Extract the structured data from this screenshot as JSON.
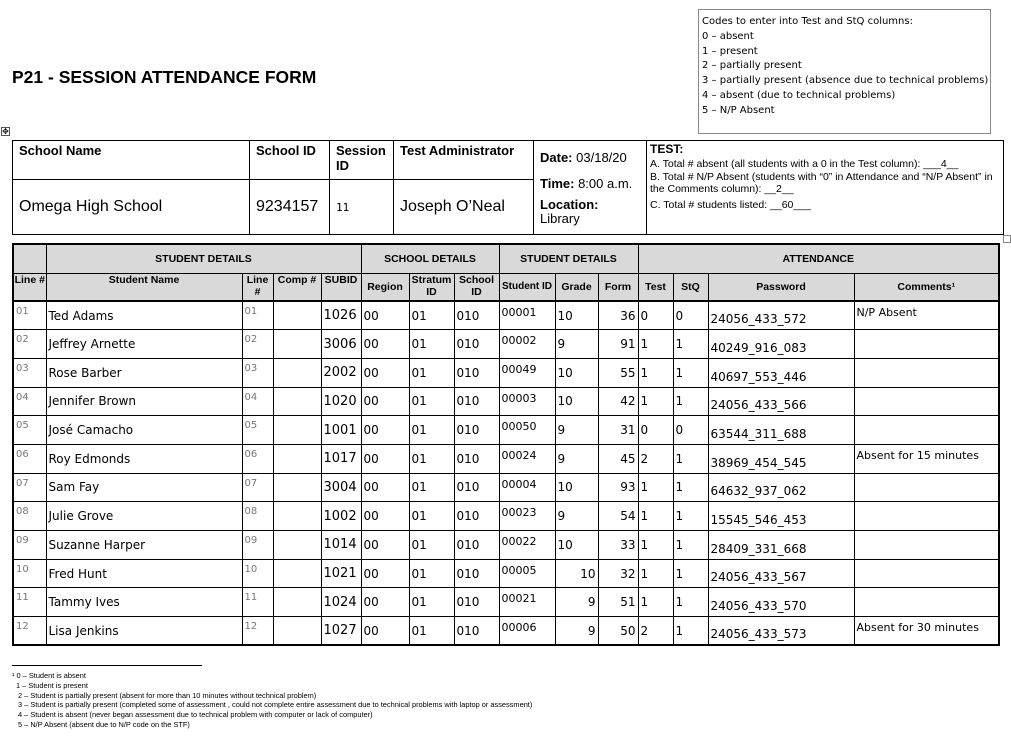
{
  "title": "P21 - SESSION ATTENDANCE FORM",
  "codes_box": {
    "heading": "Codes to enter into Test and StQ columns:",
    "items": [
      "0 – absent",
      "1 – present",
      "2 – partially present",
      "3 – partially present (absence due to technical problems)",
      "4 – absent (due to technical problems)",
      "5 – N/P Absent"
    ]
  },
  "session": {
    "school_name_label": "School Name",
    "school_name": "Omega High School",
    "school_id_label": "School ID",
    "school_id": "9234157",
    "session_id_label": "Session ID",
    "session_id": "11",
    "admin_label": "Test Administrator",
    "admin": "Joseph O’Neal",
    "date_label": "Date:",
    "date": "03/18/20",
    "time_label": "Time:",
    "time": "8:00 a.m.",
    "location_label": "Location:",
    "location": "Library",
    "test_label": "TEST:",
    "total_absent": "A. Total # absent (all students with a 0 in the Test column): ___4__",
    "total_np": "B. Total # N/P Absent (students with “0” in Attendance and “N/P Absent” in the Comments column): __2__",
    "total_listed": "C. Total # students listed: __60___"
  },
  "table": {
    "groups": [
      "STUDENT DETAILS",
      "SCHOOL DETAILS",
      "STUDENT DETAILS",
      "ATTENDANCE"
    ],
    "columns": [
      "Line #",
      "Student Name",
      "Line #",
      "Comp #",
      "SUBID",
      "Region",
      "Stratum ID",
      "School ID",
      "Student ID",
      "Grade",
      "Form",
      "Test",
      "StQ",
      "Password",
      "Comments¹"
    ],
    "rows": [
      [
        "01",
        "Ted Adams",
        "01",
        "",
        "1026",
        "00",
        "01",
        "010",
        "00001",
        "10",
        "36",
        "0",
        "0",
        "24056_433_572",
        "N/P Absent"
      ],
      [
        "02",
        "Jeffrey Arnette",
        "02",
        "",
        "3006",
        "00",
        "01",
        "010",
        "00002",
        "9",
        "91",
        "1",
        "1",
        "40249_916_083",
        ""
      ],
      [
        "03",
        "Rose Barber",
        "03",
        "",
        "2002",
        "00",
        "01",
        "010",
        "00049",
        "10",
        "55",
        "1",
        "1",
        "40697_553_446",
        ""
      ],
      [
        "04",
        "Jennifer Brown",
        "04",
        "",
        "1020",
        "00",
        "01",
        "010",
        "00003",
        "10",
        "42",
        "1",
        "1",
        "24056_433_566",
        ""
      ],
      [
        "05",
        "José Camacho",
        "05",
        "",
        "1001",
        "00",
        "01",
        "010",
        "00050",
        "9",
        "31",
        "0",
        "0",
        "63544_311_688",
        ""
      ],
      [
        "06",
        "Roy Edmonds",
        "06",
        "",
        "1017",
        "00",
        "01",
        "010",
        "00024",
        "9",
        "45",
        "2",
        "1",
        "38969_454_545",
        "Absent for 15 minutes"
      ],
      [
        "07",
        "Sam Fay",
        "07",
        "",
        "3004",
        "00",
        "01",
        "010",
        "00004",
        "10",
        "93",
        "1",
        "1",
        "64632_937_062",
        ""
      ],
      [
        "08",
        "Julie Grove",
        "08",
        "",
        "1002",
        "00",
        "01",
        "010",
        "00023",
        "9",
        "54",
        "1",
        "1",
        "15545_546_453",
        ""
      ],
      [
        "09",
        "Suzanne Harper",
        "09",
        "",
        "1014",
        "00",
        "01",
        "010",
        "00022",
        "10",
        "33",
        "1",
        "1",
        "28409_331_668",
        ""
      ],
      [
        "10",
        "Fred Hunt",
        "10",
        "",
        "1021",
        "00",
        "01",
        "010",
        "00005",
        "10",
        "32",
        "1",
        "1",
        "24056_433_567",
        ""
      ],
      [
        "11",
        "Tammy Ives",
        "11",
        "",
        "1024",
        "00",
        "01",
        "010",
        "00021",
        "9",
        "51",
        "1",
        "1",
        "24056_433_570",
        ""
      ],
      [
        "12",
        "Lisa Jenkins",
        "12",
        "",
        "1027",
        "00",
        "01",
        "010",
        "00006",
        "9",
        "50",
        "2",
        "1",
        "24056_433_573",
        "Absent for 30 minutes"
      ]
    ]
  },
  "footnotes": [
    "¹ 0 – Student is absent",
    "1 – Student is present",
    "2 – Student is partially present (absent for more than 10 minutes without technical problem)",
    "3 – Student is partially present (completed some of assessment , could not complete entire assessment due to technical problems with laptop or assessment)",
    "4 – Student is absent (never began assessment due to technical problem with computer or lack of computer)",
    "5 – N/P Absent (absent due to N/P code on the STF)"
  ]
}
